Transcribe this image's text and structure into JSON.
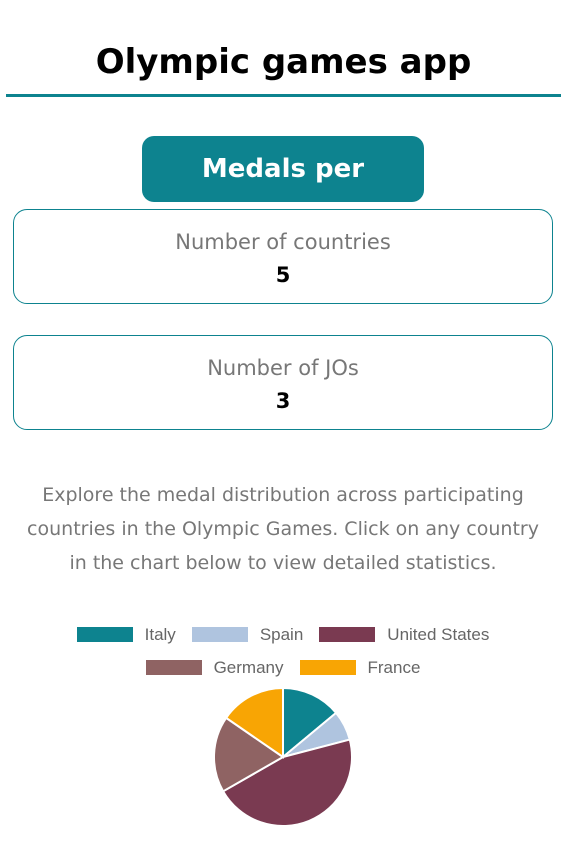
{
  "app": {
    "title": "Olympic games app"
  },
  "section": {
    "title": "Medals per Country"
  },
  "stats": {
    "countries": {
      "label": "Number of countries",
      "value": "5"
    },
    "jos": {
      "label": "Number of JOs",
      "value": "3"
    }
  },
  "description": "Explore the medal distribution across participating countries in the Olympic Games. Click on any country in the chart below to view detailed statistics.",
  "colors": {
    "accent": "#0d838f",
    "muted_text": "#777777"
  },
  "chart_data": {
    "type": "pie",
    "categories": [
      "Italy",
      "Spain",
      "United States",
      "Germany",
      "France"
    ],
    "values": [
      96,
      48,
      315,
      123,
      106
    ],
    "colors": [
      "#0d838f",
      "#afc4df",
      "#7a3a51",
      "#8f6363",
      "#f8a504"
    ],
    "legend_position": "top"
  }
}
